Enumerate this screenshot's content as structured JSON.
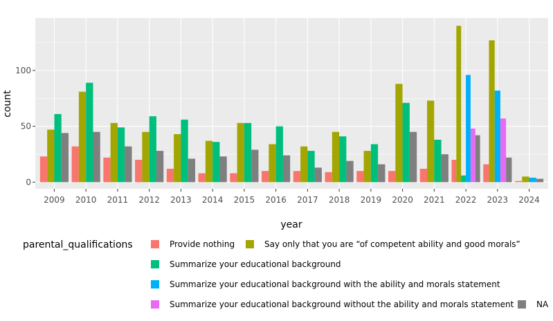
{
  "chart_data": {
    "type": "bar",
    "title": "",
    "xlabel": "year",
    "ylabel": "count",
    "ylim": [
      -6,
      147
    ],
    "yticks": [
      0,
      50,
      100
    ],
    "grid": true,
    "legend_position": "bottom",
    "legend_title": "parental_qualifications",
    "categories": [
      "2009",
      "2010",
      "2011",
      "2012",
      "2013",
      "2014",
      "2015",
      "2016",
      "2017",
      "2018",
      "2019",
      "2020",
      "2021",
      "2022",
      "2023",
      "2024"
    ],
    "series": [
      {
        "name": "Provide nothing",
        "color": "#F8766D",
        "values": [
          23,
          32,
          22,
          20,
          12,
          8,
          8,
          10,
          10,
          9,
          10,
          10,
          12,
          20,
          16,
          1
        ]
      },
      {
        "name": "Say only that you are “of competent ability and good morals”",
        "color": "#A3A500",
        "values": [
          47,
          81,
          53,
          45,
          43,
          37,
          53,
          34,
          32,
          45,
          28,
          88,
          73,
          140,
          127,
          5
        ]
      },
      {
        "name": "Summarize your educational background",
        "color": "#00BF7D",
        "values": [
          61,
          89,
          49,
          59,
          56,
          36,
          53,
          50,
          28,
          41,
          34,
          71,
          38,
          6,
          null,
          null
        ]
      },
      {
        "name": "Summarize your educational background with the ability and morals statement",
        "color": "#00B0F6",
        "values": [
          null,
          null,
          null,
          null,
          null,
          null,
          null,
          null,
          null,
          null,
          null,
          null,
          null,
          96,
          82,
          4
        ]
      },
      {
        "name": "Summarize your educational background without the ability and morals statement",
        "color": "#E76BF3",
        "values": [
          null,
          null,
          null,
          null,
          null,
          null,
          null,
          null,
          null,
          null,
          null,
          null,
          null,
          48,
          57,
          null
        ]
      },
      {
        "name": "NA",
        "color": "#7F7F7F",
        "values": [
          44,
          45,
          32,
          28,
          21,
          23,
          29,
          24,
          13,
          19,
          16,
          45,
          25,
          42,
          22,
          3
        ]
      }
    ]
  }
}
